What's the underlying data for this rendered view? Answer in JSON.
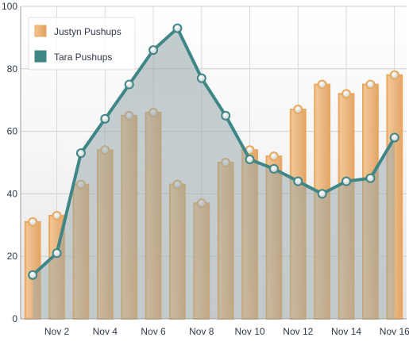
{
  "chart_data": {
    "type": "bar",
    "title": "",
    "xlabel": "",
    "ylabel": "",
    "ylim": [
      0,
      100
    ],
    "y_ticks": [
      0,
      20,
      40,
      60,
      80,
      100
    ],
    "categories": [
      "Nov 1",
      "Nov 2",
      "Nov 3",
      "Nov 4",
      "Nov 5",
      "Nov 6",
      "Nov 7",
      "Nov 8",
      "Nov 9",
      "Nov 10",
      "Nov 11",
      "Nov 12",
      "Nov 13",
      "Nov 14",
      "Nov 15",
      "Nov 16"
    ],
    "x_tick_labels": [
      "Nov 2",
      "Nov 4",
      "Nov 6",
      "Nov 8",
      "Nov 10",
      "Nov 12",
      "Nov 14",
      "Nov 16"
    ],
    "grid": true,
    "legend_position": "top-left",
    "series": [
      {
        "name": "Justyn Pushups",
        "type": "bar",
        "color": "#e9a85d",
        "values": [
          31,
          33,
          43,
          54,
          65,
          66,
          43,
          37,
          50,
          54,
          52,
          67,
          75,
          72,
          75,
          78
        ]
      },
      {
        "name": "Tara Pushups",
        "type": "area",
        "color": "#3f8686",
        "values": [
          14,
          21,
          53,
          64,
          75,
          86,
          93,
          77,
          65,
          51,
          48,
          44,
          40,
          44,
          45,
          58
        ]
      }
    ]
  }
}
